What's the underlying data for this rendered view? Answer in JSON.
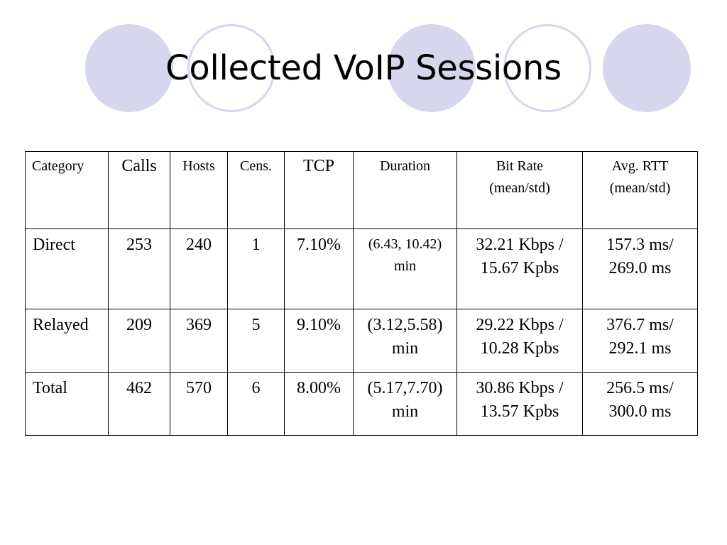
{
  "slide": {
    "title": "Collected VoIP Sessions"
  },
  "table": {
    "headers": [
      {
        "lines": [
          "Category"
        ]
      },
      {
        "lines": [
          "Calls"
        ]
      },
      {
        "lines": [
          "Hosts"
        ]
      },
      {
        "lines": [
          "Cens."
        ]
      },
      {
        "lines": [
          "TCP"
        ]
      },
      {
        "lines": [
          "Duration"
        ]
      },
      {
        "lines": [
          "Bit Rate",
          "(mean/std)"
        ]
      },
      {
        "lines": [
          "Avg. RTT",
          "(mean/std)"
        ]
      }
    ],
    "rows": [
      {
        "category": "Direct",
        "calls": "253",
        "hosts": "240",
        "cens": "1",
        "tcp": "7.10%",
        "duration": [
          "(6.43, 10.42)",
          "min"
        ],
        "bitrate": [
          "32.21 Kbps /",
          "15.67 Kpbs"
        ],
        "rtt": [
          "157.3 ms/",
          "269.0 ms"
        ]
      },
      {
        "category": "Relayed",
        "calls": "209",
        "hosts": "369",
        "cens": "5",
        "tcp": "9.10%",
        "duration": [
          "(3.12,5.58)",
          "min"
        ],
        "bitrate": [
          "29.22 Kbps /",
          "10.28 Kpbs"
        ],
        "rtt": [
          "376.7 ms/",
          "292.1 ms"
        ]
      },
      {
        "category": "Total",
        "calls": "462",
        "hosts": "570",
        "cens": "6",
        "tcp": "8.00%",
        "duration": [
          "(5.17,7.70)",
          "min"
        ],
        "bitrate": [
          "30.86 Kbps /",
          "13.57 Kpbs"
        ],
        "rtt": [
          "256.5 ms/",
          "300.0 ms"
        ]
      }
    ]
  },
  "colors": {
    "decor_circle": "#d6d6ec",
    "text": "#000000",
    "background": "#ffffff"
  }
}
